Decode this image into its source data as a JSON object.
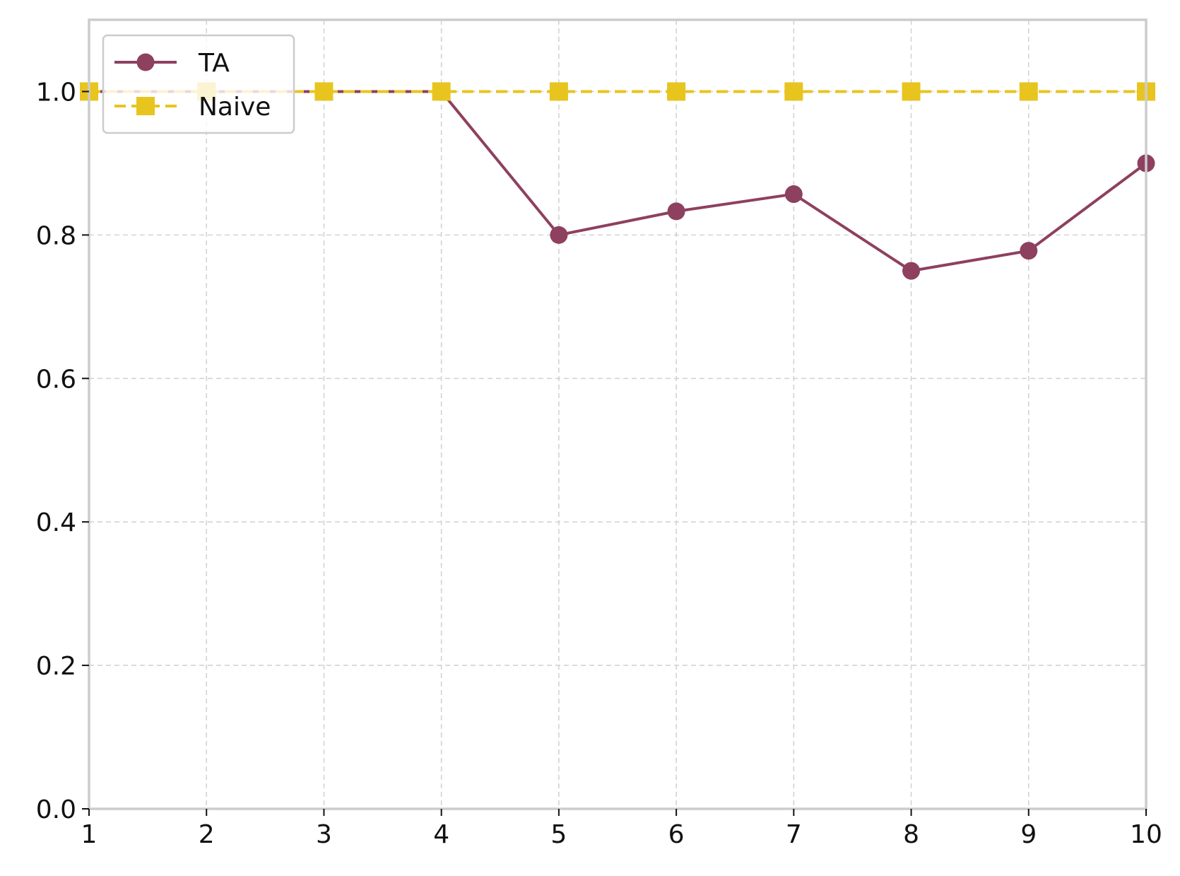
{
  "chart_data": {
    "type": "line",
    "title": "",
    "xlabel": "",
    "ylabel": "",
    "x": [
      1,
      2,
      3,
      4,
      5,
      6,
      7,
      8,
      9,
      10
    ],
    "xlim": [
      1,
      10
    ],
    "ylim": [
      0,
      1.1
    ],
    "xticks": [
      "1",
      "2",
      "3",
      "4",
      "5",
      "6",
      "7",
      "8",
      "9",
      "10"
    ],
    "yticks": [
      "0.0",
      "0.2",
      "0.4",
      "0.6",
      "0.8",
      "1.0"
    ],
    "ytick_values": [
      0,
      0.2,
      0.4,
      0.6,
      0.8,
      1.0
    ],
    "grid": true,
    "legend_position": "top-left",
    "series": [
      {
        "name": "TA",
        "values": [
          1.0,
          1.0,
          1.0,
          1.0,
          0.8,
          0.833,
          0.857,
          0.75,
          0.778,
          0.9
        ],
        "color": "#8e405f",
        "line_style": "solid",
        "marker": "circle"
      },
      {
        "name": "Naive",
        "values": [
          1.0,
          1.0,
          1.0,
          1.0,
          1.0,
          1.0,
          1.0,
          1.0,
          1.0,
          1.0
        ],
        "color": "#e8c41f",
        "line_style": "dashed",
        "marker": "square"
      }
    ]
  }
}
